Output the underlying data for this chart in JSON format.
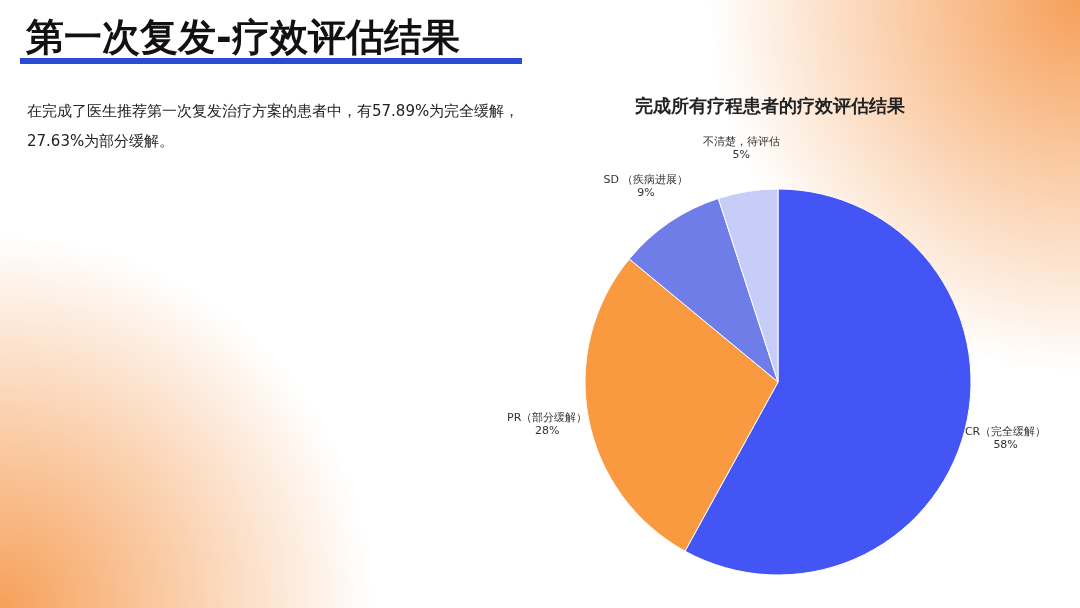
{
  "chart_data": {
    "type": "pie",
    "title": "第一次复发-疗效评估结果",
    "subtitle": "完成所有疗程患者的疗效评估结果",
    "annotations": [
      "在完成了医生推荐第一次复发治疗方案的患者中，有57.89%为完全缓解，27.63%为部分缓解。"
    ],
    "categories": [
      "CR（完全缓解）",
      "PR（部分缓解）",
      "SD （疾病进展）",
      "不清楚，待评估"
    ],
    "values": [
      58,
      28,
      9,
      5
    ],
    "colors": [
      "#4455f5",
      "#f99a40",
      "#6f7de8",
      "#c5cdf8"
    ],
    "value_labels": [
      "58%",
      "28%",
      "9%",
      "5%"
    ]
  }
}
